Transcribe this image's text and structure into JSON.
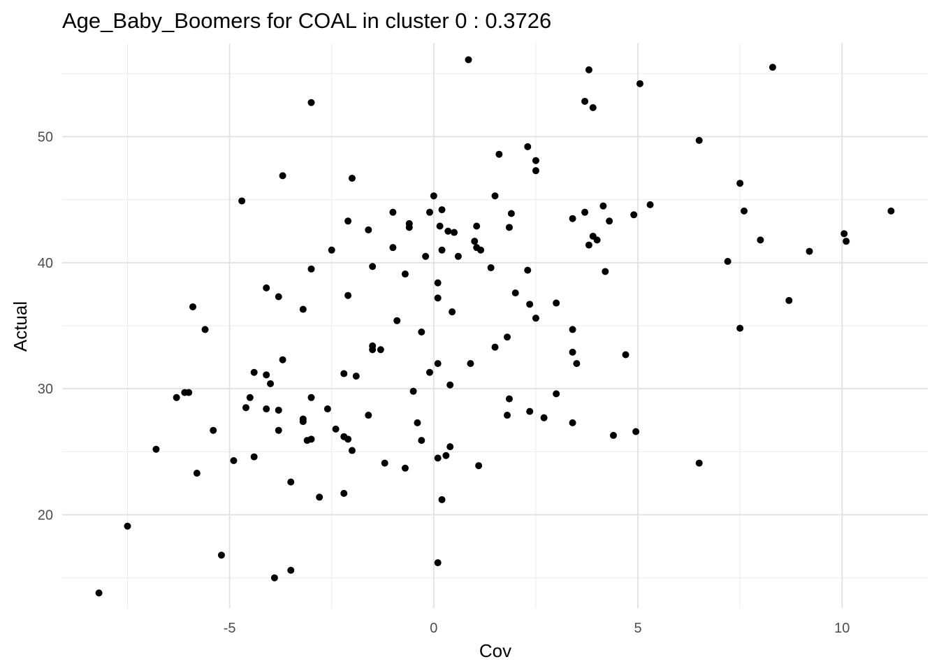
{
  "chart_data": {
    "type": "scatter",
    "title": "Age_Baby_Boomers for COAL in cluster 0 : 0.3726",
    "xlabel": "Cov",
    "ylabel": "Actual",
    "xlim": [
      -9.1,
      12.1
    ],
    "ylim": [
      12.6,
      57.4
    ],
    "x_ticks": [
      -5,
      0,
      5,
      10
    ],
    "x_tick_labels": [
      "-5",
      "0",
      "5",
      "10"
    ],
    "x_minor_ticks": [
      -7.5,
      -2.5,
      2.5,
      7.5
    ],
    "y_ticks": [
      20,
      30,
      40,
      50
    ],
    "y_tick_labels": [
      "20",
      "30",
      "40",
      "50"
    ],
    "y_minor_ticks": [
      15,
      25,
      35,
      45,
      55
    ],
    "grid": true,
    "legend": "none",
    "point_color": "#000000",
    "points": [
      {
        "x": -8.2,
        "y": 13.8
      },
      {
        "x": -7.5,
        "y": 19.1
      },
      {
        "x": -6.8,
        "y": 25.2
      },
      {
        "x": -6.3,
        "y": 29.3
      },
      {
        "x": -6.1,
        "y": 29.7
      },
      {
        "x": -6.0,
        "y": 29.7
      },
      {
        "x": -5.9,
        "y": 36.5
      },
      {
        "x": -5.8,
        "y": 23.3
      },
      {
        "x": -5.6,
        "y": 34.7
      },
      {
        "x": -5.4,
        "y": 26.7
      },
      {
        "x": -5.2,
        "y": 16.8
      },
      {
        "x": -4.9,
        "y": 24.3
      },
      {
        "x": -4.7,
        "y": 44.9
      },
      {
        "x": -4.6,
        "y": 28.5
      },
      {
        "x": -4.5,
        "y": 29.3
      },
      {
        "x": -4.4,
        "y": 31.3
      },
      {
        "x": -4.4,
        "y": 24.6
      },
      {
        "x": -4.1,
        "y": 38.0
      },
      {
        "x": -4.1,
        "y": 31.1
      },
      {
        "x": -4.1,
        "y": 28.4
      },
      {
        "x": -4.0,
        "y": 30.4
      },
      {
        "x": -3.9,
        "y": 15.0
      },
      {
        "x": -3.8,
        "y": 37.3
      },
      {
        "x": -3.8,
        "y": 28.3
      },
      {
        "x": -3.8,
        "y": 26.7
      },
      {
        "x": -3.7,
        "y": 32.3
      },
      {
        "x": -3.7,
        "y": 46.9
      },
      {
        "x": -3.5,
        "y": 22.6
      },
      {
        "x": -3.5,
        "y": 15.6
      },
      {
        "x": -3.2,
        "y": 36.3
      },
      {
        "x": -3.2,
        "y": 27.6
      },
      {
        "x": -3.2,
        "y": 27.4
      },
      {
        "x": -3.1,
        "y": 25.9
      },
      {
        "x": -3.0,
        "y": 52.7
      },
      {
        "x": -3.0,
        "y": 26.0
      },
      {
        "x": -3.0,
        "y": 39.5
      },
      {
        "x": -3.0,
        "y": 29.3
      },
      {
        "x": -2.8,
        "y": 21.4
      },
      {
        "x": -2.6,
        "y": 28.4
      },
      {
        "x": -2.5,
        "y": 41.0
      },
      {
        "x": -2.4,
        "y": 26.8
      },
      {
        "x": -2.2,
        "y": 21.7
      },
      {
        "x": -2.2,
        "y": 26.2
      },
      {
        "x": -2.2,
        "y": 31.2
      },
      {
        "x": -2.1,
        "y": 43.3
      },
      {
        "x": -2.1,
        "y": 37.4
      },
      {
        "x": -2.1,
        "y": 26.0
      },
      {
        "x": -2.0,
        "y": 46.7
      },
      {
        "x": -2.0,
        "y": 25.1
      },
      {
        "x": -1.9,
        "y": 31.0
      },
      {
        "x": -1.6,
        "y": 42.6
      },
      {
        "x": -1.6,
        "y": 27.9
      },
      {
        "x": -1.5,
        "y": 39.7
      },
      {
        "x": -1.5,
        "y": 33.4
      },
      {
        "x": -1.5,
        "y": 33.1
      },
      {
        "x": -1.3,
        "y": 33.1
      },
      {
        "x": -1.2,
        "y": 24.1
      },
      {
        "x": -1.0,
        "y": 44.0
      },
      {
        "x": -1.0,
        "y": 41.2
      },
      {
        "x": -0.9,
        "y": 35.4
      },
      {
        "x": -0.7,
        "y": 39.1
      },
      {
        "x": -0.7,
        "y": 23.7
      },
      {
        "x": -0.6,
        "y": 43.1
      },
      {
        "x": -0.6,
        "y": 42.8
      },
      {
        "x": -0.5,
        "y": 29.8
      },
      {
        "x": -0.4,
        "y": 27.3
      },
      {
        "x": -0.3,
        "y": 34.5
      },
      {
        "x": -0.3,
        "y": 25.9
      },
      {
        "x": -0.2,
        "y": 40.5
      },
      {
        "x": -0.1,
        "y": 44.0
      },
      {
        "x": -0.1,
        "y": 31.3
      },
      {
        "x": 0.0,
        "y": 45.3
      },
      {
        "x": 0.1,
        "y": 32.0
      },
      {
        "x": 0.1,
        "y": 38.4
      },
      {
        "x": 0.1,
        "y": 37.2
      },
      {
        "x": 0.1,
        "y": 24.5
      },
      {
        "x": 0.1,
        "y": 16.2
      },
      {
        "x": 0.15,
        "y": 42.9
      },
      {
        "x": 0.2,
        "y": 44.2
      },
      {
        "x": 0.2,
        "y": 21.2
      },
      {
        "x": 0.2,
        "y": 41.0
      },
      {
        "x": 0.3,
        "y": 24.7
      },
      {
        "x": 0.35,
        "y": 42.5
      },
      {
        "x": 0.4,
        "y": 25.4
      },
      {
        "x": 0.4,
        "y": 30.3
      },
      {
        "x": 0.45,
        "y": 36.1
      },
      {
        "x": 0.5,
        "y": 42.4
      },
      {
        "x": 0.6,
        "y": 40.5
      },
      {
        "x": 0.85,
        "y": 56.1
      },
      {
        "x": 0.9,
        "y": 32.0
      },
      {
        "x": 1.0,
        "y": 41.7
      },
      {
        "x": 1.05,
        "y": 41.2
      },
      {
        "x": 1.05,
        "y": 42.9
      },
      {
        "x": 1.1,
        "y": 23.9
      },
      {
        "x": 1.15,
        "y": 41.0
      },
      {
        "x": 1.4,
        "y": 39.6
      },
      {
        "x": 1.5,
        "y": 45.3
      },
      {
        "x": 1.5,
        "y": 33.3
      },
      {
        "x": 1.6,
        "y": 48.6
      },
      {
        "x": 1.8,
        "y": 27.9
      },
      {
        "x": 1.8,
        "y": 34.1
      },
      {
        "x": 1.85,
        "y": 42.8
      },
      {
        "x": 1.85,
        "y": 29.2
      },
      {
        "x": 1.9,
        "y": 43.9
      },
      {
        "x": 2.0,
        "y": 37.6
      },
      {
        "x": 2.3,
        "y": 49.2
      },
      {
        "x": 2.3,
        "y": 39.4
      },
      {
        "x": 2.35,
        "y": 36.7
      },
      {
        "x": 2.35,
        "y": 28.2
      },
      {
        "x": 2.5,
        "y": 48.1
      },
      {
        "x": 2.5,
        "y": 47.3
      },
      {
        "x": 2.5,
        "y": 35.6
      },
      {
        "x": 2.7,
        "y": 27.7
      },
      {
        "x": 3.0,
        "y": 36.8
      },
      {
        "x": 3.0,
        "y": 29.6
      },
      {
        "x": 3.4,
        "y": 43.5
      },
      {
        "x": 3.4,
        "y": 34.7
      },
      {
        "x": 3.4,
        "y": 32.9
      },
      {
        "x": 3.4,
        "y": 27.3
      },
      {
        "x": 3.5,
        "y": 32.0
      },
      {
        "x": 3.7,
        "y": 52.8
      },
      {
        "x": 3.7,
        "y": 44.0
      },
      {
        "x": 3.8,
        "y": 55.3
      },
      {
        "x": 3.8,
        "y": 41.4
      },
      {
        "x": 3.9,
        "y": 52.3
      },
      {
        "x": 3.9,
        "y": 42.1
      },
      {
        "x": 4.0,
        "y": 41.8
      },
      {
        "x": 4.15,
        "y": 44.5
      },
      {
        "x": 4.2,
        "y": 39.3
      },
      {
        "x": 4.3,
        "y": 43.3
      },
      {
        "x": 4.4,
        "y": 26.3
      },
      {
        "x": 4.7,
        "y": 32.7
      },
      {
        "x": 4.9,
        "y": 43.8
      },
      {
        "x": 4.95,
        "y": 26.6
      },
      {
        "x": 5.05,
        "y": 54.2
      },
      {
        "x": 5.3,
        "y": 44.6
      },
      {
        "x": 6.5,
        "y": 49.7
      },
      {
        "x": 6.5,
        "y": 24.1
      },
      {
        "x": 7.2,
        "y": 40.1
      },
      {
        "x": 7.5,
        "y": 46.3
      },
      {
        "x": 7.5,
        "y": 34.8
      },
      {
        "x": 7.6,
        "y": 44.1
      },
      {
        "x": 8.0,
        "y": 41.8
      },
      {
        "x": 8.3,
        "y": 55.5
      },
      {
        "x": 8.7,
        "y": 37.0
      },
      {
        "x": 9.2,
        "y": 40.9
      },
      {
        "x": 10.05,
        "y": 42.3
      },
      {
        "x": 10.1,
        "y": 41.7
      },
      {
        "x": 11.2,
        "y": 44.1
      }
    ]
  }
}
